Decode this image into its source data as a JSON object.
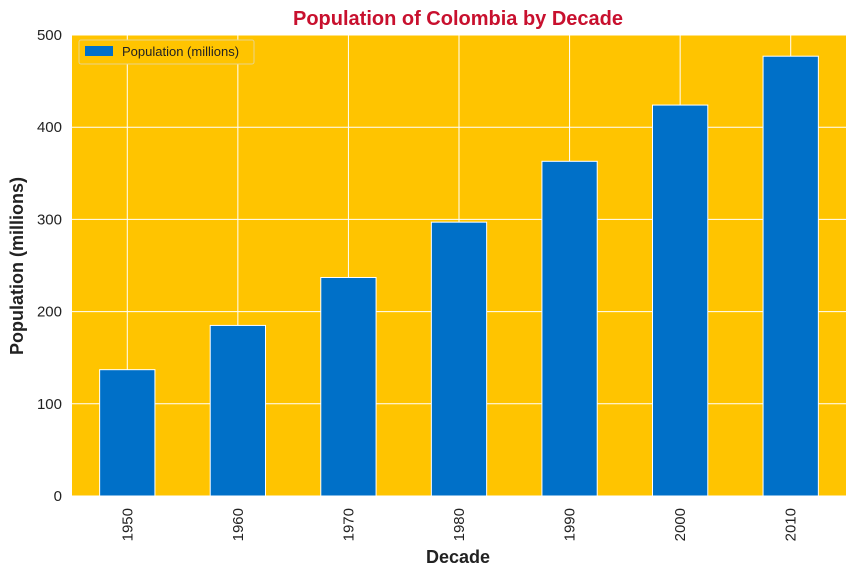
{
  "colors": {
    "plot_background": "#FFC400",
    "bar": "#0070C8",
    "title": "#C8102E",
    "grid": "#FFFFFF"
  },
  "chart_data": {
    "type": "bar",
    "title": "Population of Colombia by Decade",
    "xlabel": "Decade",
    "ylabel": "Population (millions)",
    "categories": [
      "1950",
      "1960",
      "1970",
      "1980",
      "1990",
      "2000",
      "2010"
    ],
    "series": [
      {
        "name": "Population (millions)",
        "values": [
          137,
          185,
          237,
          297,
          363,
          424,
          477
        ]
      }
    ],
    "ylim": [
      0,
      500
    ],
    "yticks": [
      "0",
      "100",
      "200",
      "300",
      "400",
      "500"
    ],
    "grid": true,
    "legend_position": "top-left"
  }
}
